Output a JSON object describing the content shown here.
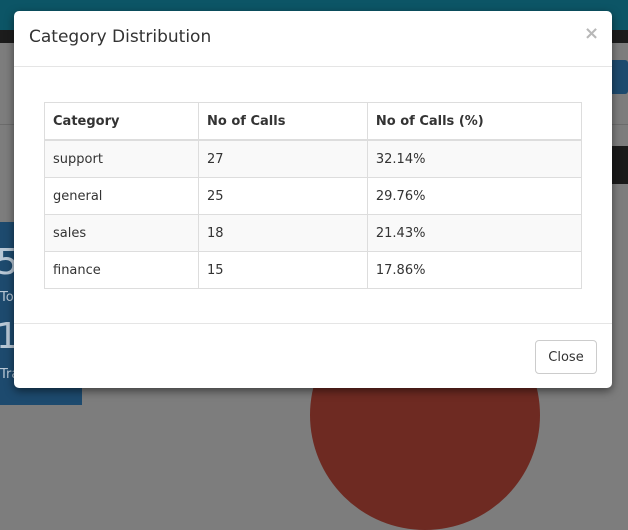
{
  "background": {
    "fragments": [
      "5",
      "To",
      "1",
      "Tra"
    ]
  },
  "modal": {
    "title": "Category Distribution",
    "close_icon": "×",
    "table": {
      "headers": [
        "Category",
        "No of Calls",
        "No of Calls (%)"
      ],
      "rows": [
        [
          "support",
          "27",
          "32.14%"
        ],
        [
          "general",
          "25",
          "29.76%"
        ],
        [
          "sales",
          "18",
          "21.43%"
        ],
        [
          "finance",
          "15",
          "17.86%"
        ]
      ]
    },
    "button": "Close"
  }
}
